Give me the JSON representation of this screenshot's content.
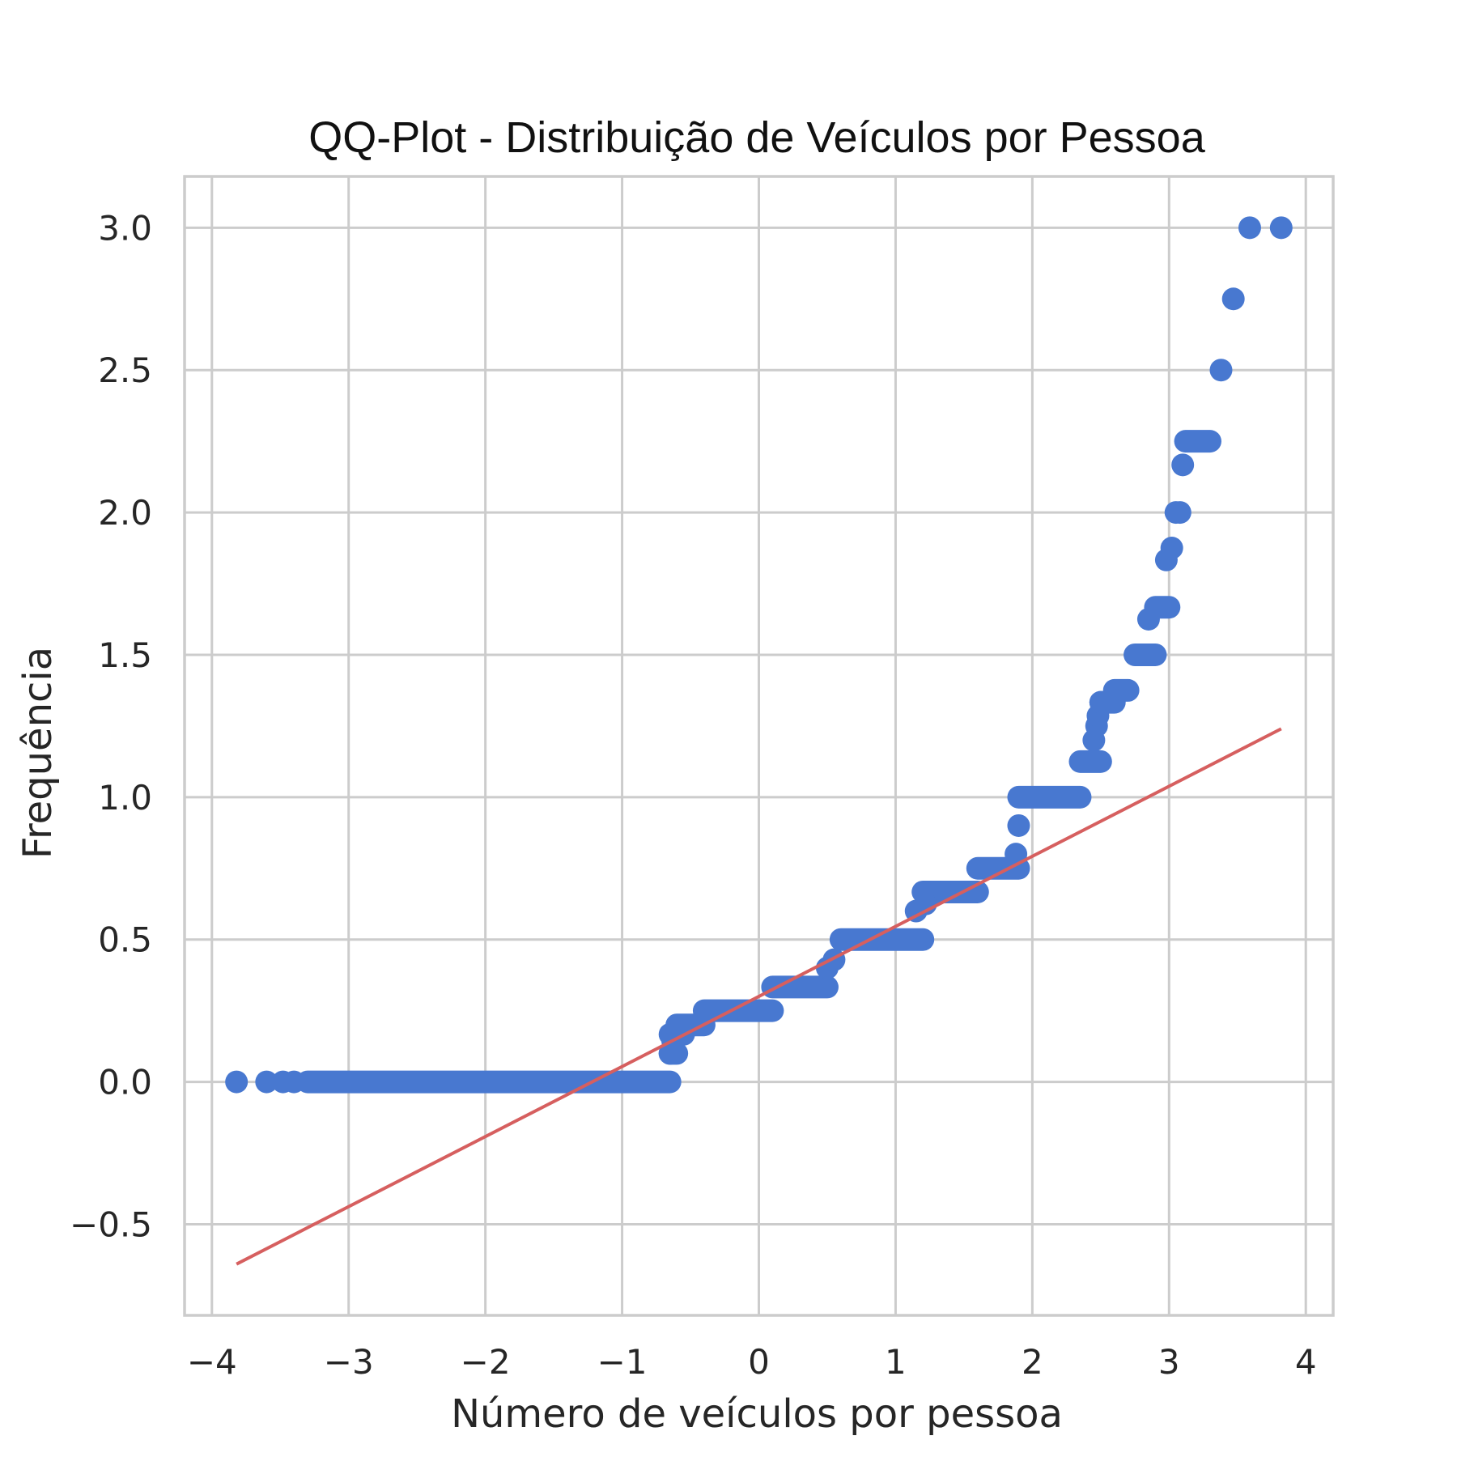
{
  "chart_data": {
    "type": "scatter",
    "title": "QQ-Plot - Distribuição de Veículos por Pessoa",
    "xlabel": "Número de veículos por pessoa",
    "ylabel": "Frequência",
    "xlim": [
      -4.2,
      4.2
    ],
    "ylim": [
      -0.82,
      3.18
    ],
    "grid": true,
    "x_ticks": [
      -4,
      -3,
      -2,
      -1,
      0,
      1,
      2,
      3,
      4
    ],
    "x_tick_labels": [
      "−4",
      "−3",
      "−2",
      "−1",
      "0",
      "1",
      "2",
      "3",
      "4"
    ],
    "y_ticks": [
      -0.5,
      0.0,
      0.5,
      1.0,
      1.5,
      2.0,
      2.5,
      3.0
    ],
    "y_tick_labels": [
      "−0.5",
      "0.0",
      "0.5",
      "1.0",
      "1.5",
      "2.0",
      "2.5",
      "3.0"
    ],
    "colors": {
      "points": "#4878d0",
      "fit_line": "#d65f5f",
      "grid": "#cccccc",
      "frame": "#cccccc"
    },
    "fit_line": {
      "x": [
        -3.82,
        3.82
      ],
      "y": [
        -0.64,
        1.24
      ]
    },
    "segments": [
      {
        "x0": -3.3,
        "x1": -0.65,
        "y": 0.0
      },
      {
        "x0": -0.65,
        "x1": -0.6,
        "y": 0.1
      },
      {
        "x0": -0.65,
        "x1": -0.55,
        "y": 0.167
      },
      {
        "x0": -0.6,
        "x1": -0.4,
        "y": 0.2
      },
      {
        "x0": -0.4,
        "x1": 0.1,
        "y": 0.25
      },
      {
        "x0": 0.1,
        "x1": 0.5,
        "y": 0.333
      },
      {
        "x0": 0.6,
        "x1": 1.2,
        "y": 0.5
      },
      {
        "x0": 1.2,
        "x1": 1.6,
        "y": 0.667
      },
      {
        "x0": 1.6,
        "x1": 1.9,
        "y": 0.75
      },
      {
        "x0": 1.9,
        "x1": 2.35,
        "y": 1.0
      },
      {
        "x0": 2.35,
        "x1": 2.5,
        "y": 1.125
      },
      {
        "x0": 2.5,
        "x1": 2.6,
        "y": 1.333
      },
      {
        "x0": 2.6,
        "x1": 2.7,
        "y": 1.375
      },
      {
        "x0": 2.75,
        "x1": 2.9,
        "y": 1.5
      },
      {
        "x0": 2.9,
        "x1": 3.0,
        "y": 1.667
      },
      {
        "x0": 3.12,
        "x1": 3.3,
        "y": 2.25
      }
    ],
    "points": [
      {
        "x": -3.82,
        "y": 0.0
      },
      {
        "x": -3.6,
        "y": 0.0
      },
      {
        "x": -3.48,
        "y": 0.0
      },
      {
        "x": -3.4,
        "y": 0.0
      },
      {
        "x": -0.65,
        "y": 0.1
      },
      {
        "x": -0.63,
        "y": 0.143
      },
      {
        "x": 0.5,
        "y": 0.4
      },
      {
        "x": 0.55,
        "y": 0.429
      },
      {
        "x": 1.15,
        "y": 0.6
      },
      {
        "x": 1.22,
        "y": 0.625
      },
      {
        "x": 1.88,
        "y": 0.8
      },
      {
        "x": 1.9,
        "y": 0.9
      },
      {
        "x": 2.45,
        "y": 1.2
      },
      {
        "x": 2.47,
        "y": 1.25
      },
      {
        "x": 2.48,
        "y": 1.286
      },
      {
        "x": 2.5,
        "y": 1.333
      },
      {
        "x": 2.85,
        "y": 1.625
      },
      {
        "x": 2.98,
        "y": 1.833
      },
      {
        "x": 3.02,
        "y": 1.875
      },
      {
        "x": 3.05,
        "y": 2.0
      },
      {
        "x": 3.08,
        "y": 2.0
      },
      {
        "x": 3.1,
        "y": 2.167
      },
      {
        "x": 3.38,
        "y": 2.5
      },
      {
        "x": 3.47,
        "y": 2.75
      },
      {
        "x": 3.59,
        "y": 3.0
      },
      {
        "x": 3.82,
        "y": 3.0
      }
    ]
  }
}
